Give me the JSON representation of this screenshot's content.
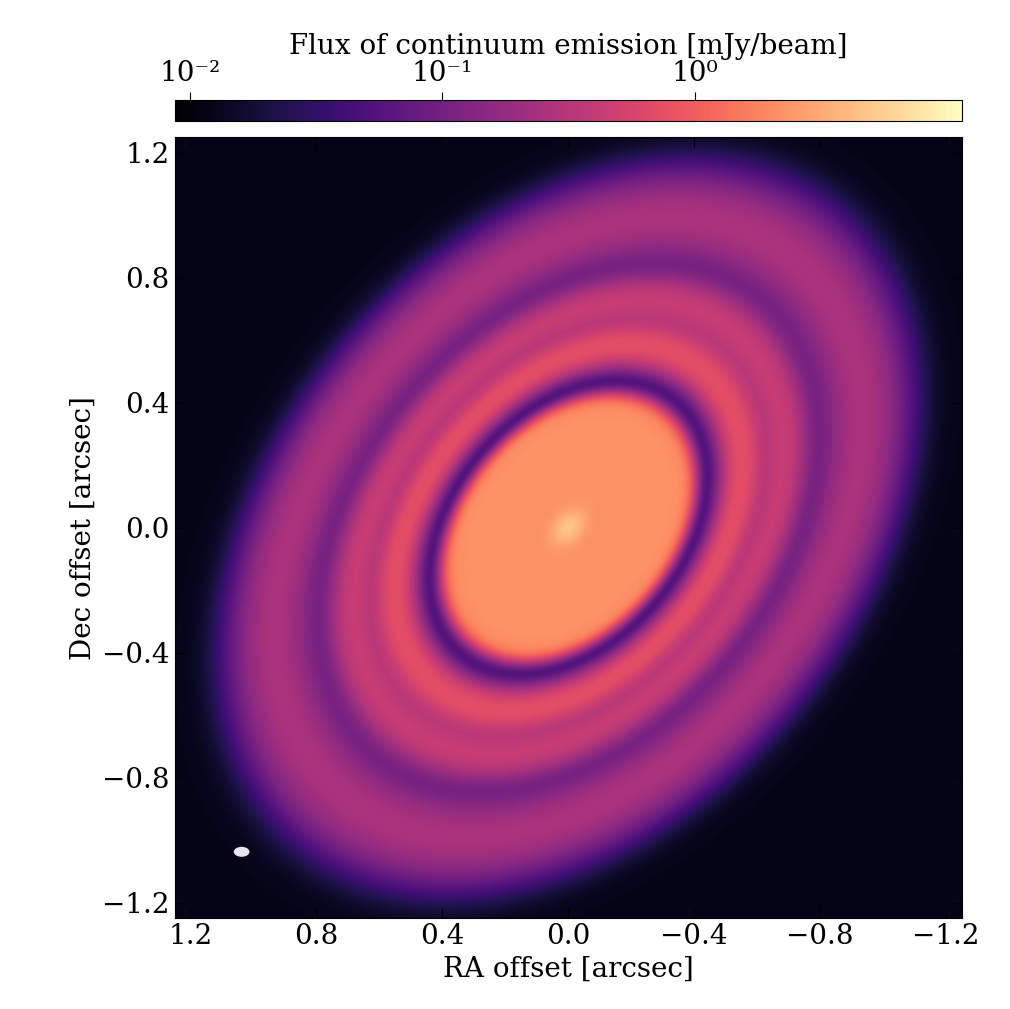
{
  "chart_data": {
    "type": "heatmap",
    "xlabel": "RA offset [arcsec]",
    "ylabel": "Dec offset [arcsec]",
    "xlim": [
      1.25,
      -1.25
    ],
    "ylim": [
      -1.25,
      1.25
    ],
    "xticks": [
      1.2,
      0.8,
      0.4,
      0.0,
      {
        "value": -0.4,
        "label": "−0.4"
      },
      {
        "value": -0.8,
        "label": "−0.8"
      },
      {
        "value": -1.2,
        "label": "−1.2"
      }
    ],
    "yticks": [
      {
        "value": -1.2,
        "label": "−1.2"
      },
      {
        "value": -0.8,
        "label": "−0.8"
      },
      {
        "value": -0.4,
        "label": "−0.4"
      },
      0.0,
      0.4,
      0.8,
      1.2
    ],
    "color": "magma",
    "colorbar": {
      "label": "Flux of continuum emission [mJy/beam]",
      "log": true,
      "range": [
        0.0087,
        11.4
      ],
      "ticks": [
        {
          "value": 0.01,
          "label": "10⁻²"
        },
        {
          "value": 0.1,
          "label": "10⁻¹"
        },
        {
          "value": 1,
          "label": "10⁰"
        }
      ]
    },
    "disk": {
      "inclination_deg": 46,
      "position_angle_deg": 140,
      "background": 0.012,
      "core": {
        "radius": 0.46,
        "edge": 0.015,
        "flux": 2.2
      },
      "center": {
        "width": 0.04,
        "peak": 2.5
      },
      "rings": [
        {
          "radius": 0.66,
          "width": 0.05,
          "peak": 0.7
        },
        {
          "radius": 0.82,
          "width": 0.06,
          "peak": 0.4
        },
        {
          "radius": 1.12,
          "width": 0.1,
          "peak": 0.25
        }
      ]
    },
    "beam": {
      "major": 0.05,
      "minor": 0.032
    }
  }
}
